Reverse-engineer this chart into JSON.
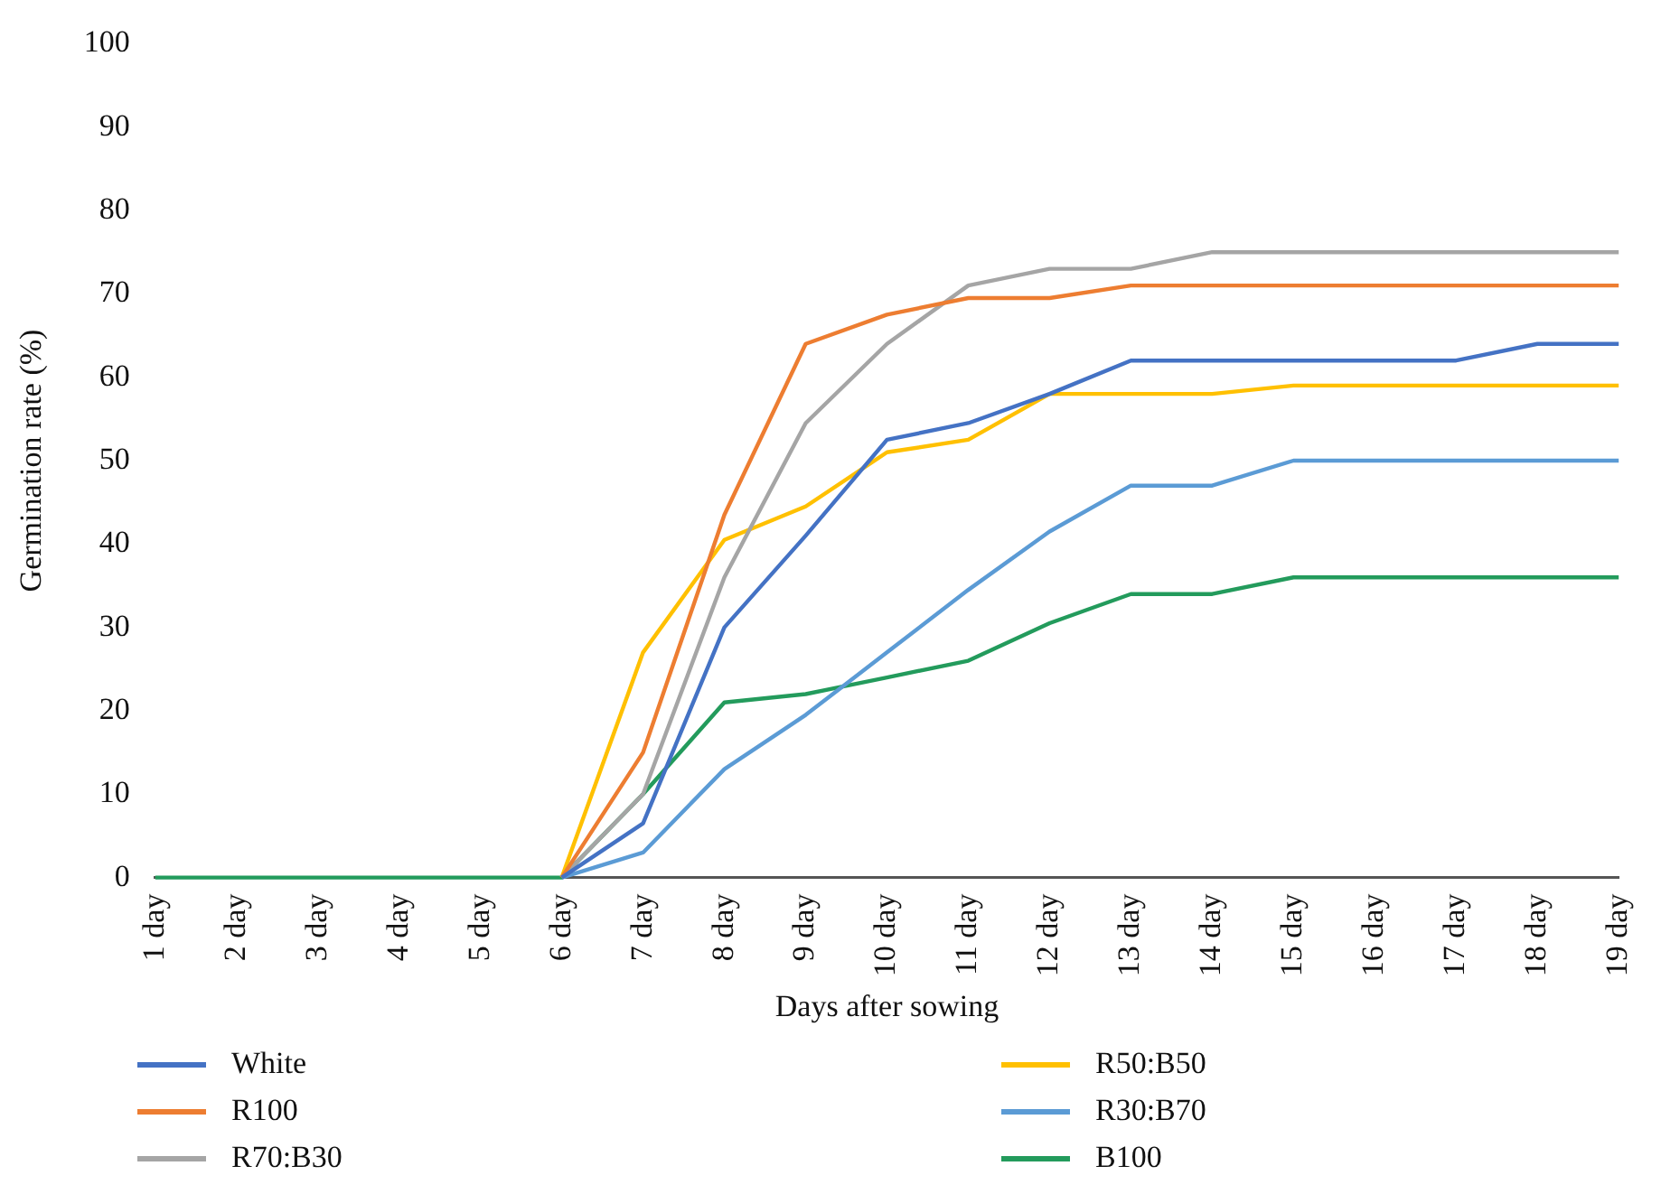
{
  "chart_data": {
    "type": "line",
    "xlabel": "Days after sowing",
    "ylabel": "Germination rate (%)",
    "categories": [
      "1 day",
      "2 day",
      "3 day",
      "4 day",
      "5 day",
      "6 day",
      "7 day",
      "8 day",
      "9 day",
      "10 day",
      "11 day",
      "12 day",
      "13 day",
      "14 day",
      "15 day",
      "16 day",
      "17 day",
      "18 day",
      "19 day"
    ],
    "series": [
      {
        "name": "White",
        "color": "#4472c4",
        "values": [
          null,
          null,
          null,
          null,
          null,
          0,
          6.5,
          30,
          41,
          52.5,
          54.5,
          58,
          62,
          62,
          62,
          62,
          62,
          64,
          64
        ]
      },
      {
        "name": "R100",
        "color": "#ed7d31",
        "values": [
          null,
          null,
          null,
          null,
          null,
          0,
          15,
          43.5,
          64,
          67.5,
          69.5,
          69.5,
          71,
          71,
          71,
          71,
          71,
          71,
          71
        ]
      },
      {
        "name": "R70:B30",
        "color": "#a5a5a5",
        "values": [
          null,
          null,
          null,
          null,
          null,
          0,
          10,
          36,
          54.5,
          64,
          71,
          73,
          73,
          75,
          75,
          75,
          75,
          75,
          75
        ]
      },
      {
        "name": "R50:B50",
        "color": "#ffc000",
        "values": [
          null,
          null,
          null,
          null,
          null,
          0,
          27,
          40.5,
          44.5,
          51,
          52.5,
          58,
          58,
          58,
          59,
          59,
          59,
          59,
          59
        ]
      },
      {
        "name": "R30:B70",
        "color": "#5b9bd5",
        "values": [
          null,
          null,
          null,
          null,
          null,
          0,
          3,
          13,
          19.5,
          27,
          34.5,
          41.5,
          47,
          47,
          50,
          50,
          50,
          50,
          50
        ]
      },
      {
        "name": "B100",
        "color": "#239b5c",
        "values": [
          0,
          0,
          0,
          0,
          0,
          0,
          10,
          21,
          22,
          24,
          26,
          30.5,
          34,
          34,
          36,
          36,
          36,
          36,
          36
        ]
      }
    ],
    "ylim": [
      0,
      100
    ],
    "yticks": [
      0,
      10,
      20,
      30,
      40,
      50,
      60,
      70,
      80,
      90,
      100
    ],
    "grid": false,
    "legend": "bottom",
    "marker": "none",
    "line_style": "solid"
  }
}
